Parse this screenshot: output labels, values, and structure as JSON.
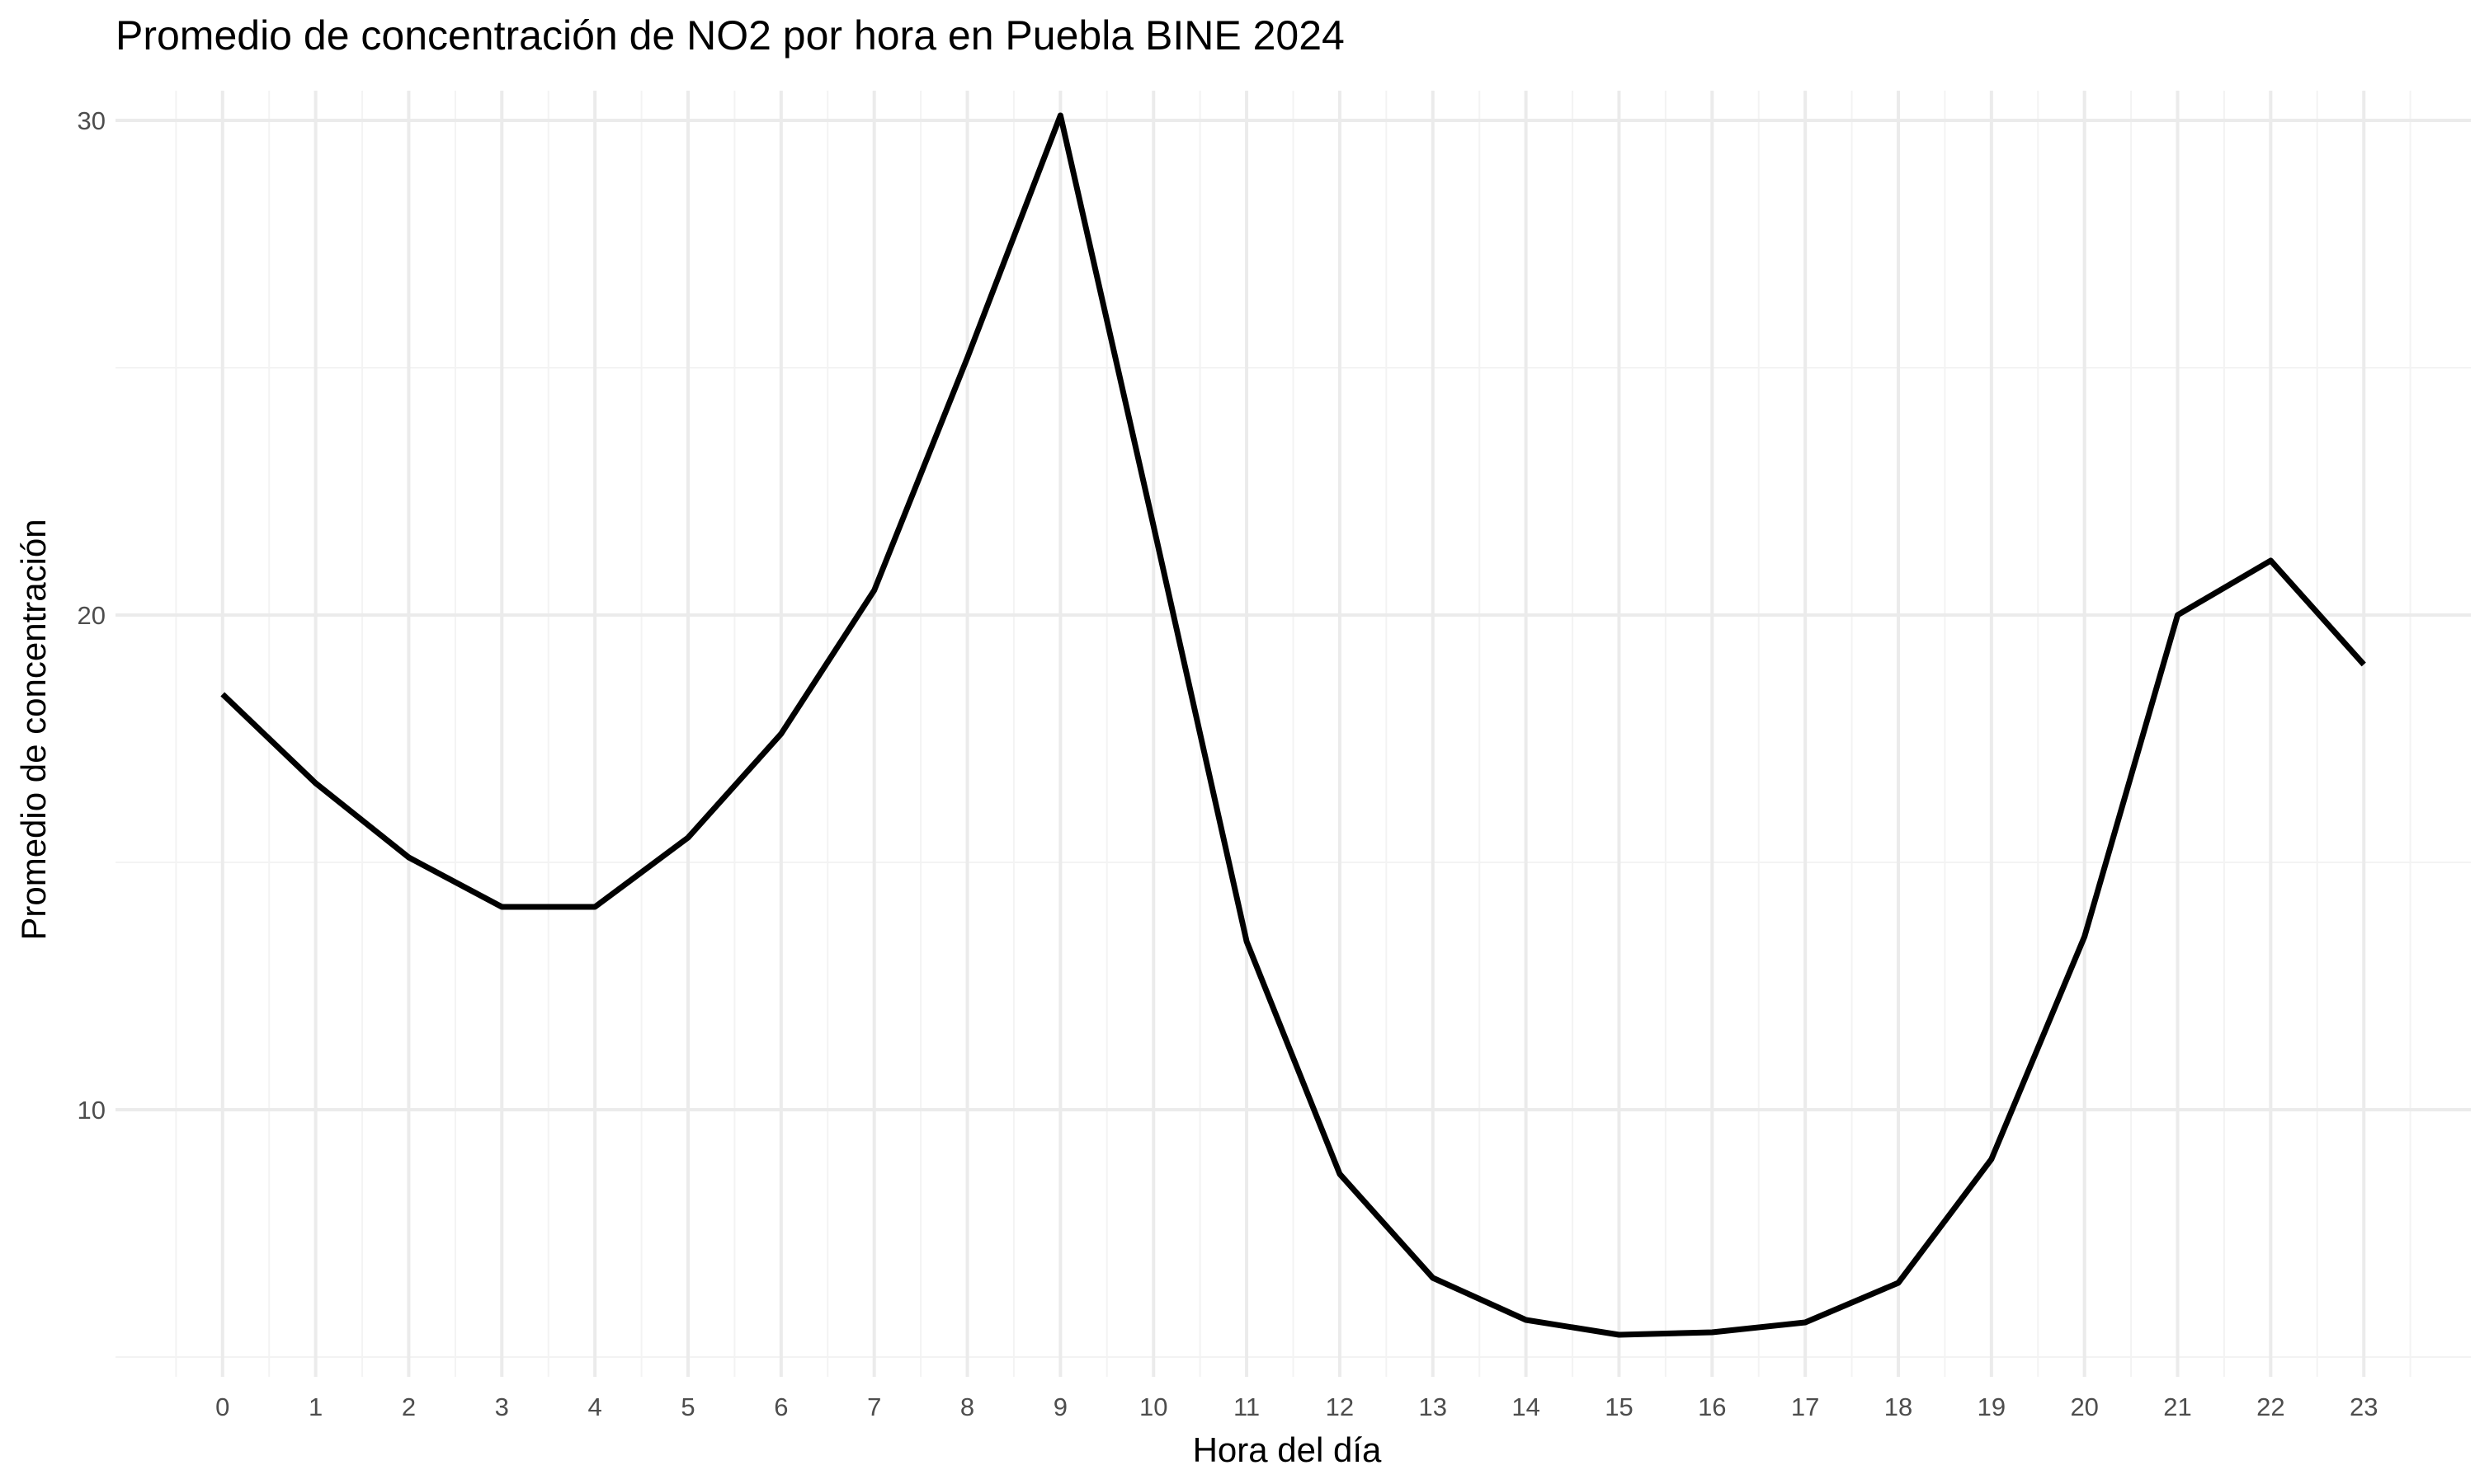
{
  "chart_data": {
    "type": "line",
    "title": "Promedio de concentración de NO2 por hora en Puebla BINE 2024",
    "xlabel": "Hora del día",
    "ylabel": "Promedio de concentración",
    "x": [
      0,
      1,
      2,
      3,
      4,
      5,
      6,
      7,
      8,
      9,
      10,
      11,
      12,
      13,
      14,
      15,
      16,
      17,
      18,
      19,
      20,
      21,
      22,
      23
    ],
    "x_tick_labels": [
      "0",
      "1",
      "2",
      "3",
      "4",
      "5",
      "6",
      "7",
      "8",
      "9",
      "10",
      "11",
      "12",
      "13",
      "14",
      "15",
      "16",
      "17",
      "18",
      "19",
      "20",
      "21",
      "22",
      "23"
    ],
    "y_ticks": [
      10,
      20,
      30
    ],
    "y_tick_labels": [
      "10",
      "20",
      "30"
    ],
    "xlim": [
      -1.15,
      24.15
    ],
    "ylim": [
      4.6,
      30.6
    ],
    "grid": true,
    "series": [
      {
        "color": "#000000",
        "values": [
          18.4,
          16.6,
          15.1,
          14.1,
          14.1,
          15.5,
          17.6,
          20.5,
          25.2,
          30.1,
          21.8,
          13.4,
          8.7,
          6.6,
          5.75,
          5.45,
          5.5,
          5.7,
          6.5,
          9.0,
          13.5,
          20.0,
          21.1,
          19.0
        ]
      }
    ]
  }
}
